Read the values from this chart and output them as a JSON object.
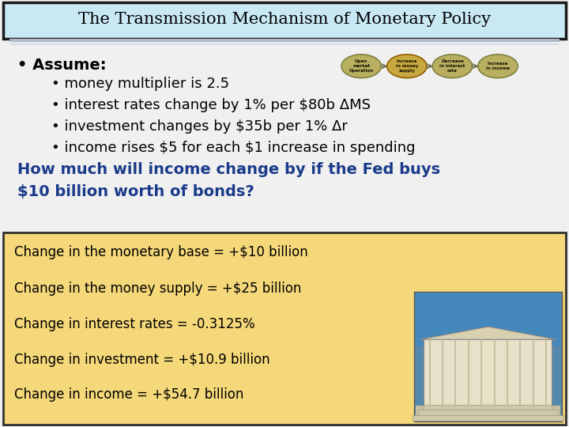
{
  "title": "The Transmission Mechanism of Monetary Policy",
  "title_bg": "#c8e8f4",
  "title_border": "#1a1a1a",
  "title_fontsize": 15,
  "bg_color": "#f0f0f0",
  "separator_color_top": "#b0b8cc",
  "separator_color_bottom": "#d8dce8",
  "bullet_main": "Assume:",
  "bullet_main_fontsize": 14,
  "sub_bullets": [
    "money multiplier is 2.5",
    "interest rates change by 1% per $80b ΔMS",
    "investment changes by $35b per 1% Δr",
    "income rises $5 for each $1 increase in spending"
  ],
  "sub_bullet_fontsize": 13,
  "question_line1": "How much will income change by if the Fed buys",
  "question_line2": "$10 billion worth of bonds?",
  "question_color": "#1a3a8a",
  "question_fontsize": 14,
  "answer_box_bg": "#f5d87a",
  "answer_box_border": "#303030",
  "answer_lines": [
    "Change in the monetary base = +$10 billion",
    "Change in the money supply = +$25 billion",
    "Change in interest rates = -0.3125%",
    "Change in investment = +$10.9 billion",
    "Change in income = +$54.7 billion"
  ],
  "answer_fontsize": 12,
  "oval_colors": [
    "#b8b060",
    "#c8a840",
    "#b8b060",
    "#b8b060"
  ],
  "oval_border_colors": [
    "#808040",
    "#906000",
    "#808040",
    "#808040"
  ],
  "oval_labels": [
    "Open\nmarket\nOperation",
    "Increase\nin money\nsupply",
    "Decrease\nin interest\nrate",
    "Increase\nin income"
  ],
  "text_color": "#000000"
}
